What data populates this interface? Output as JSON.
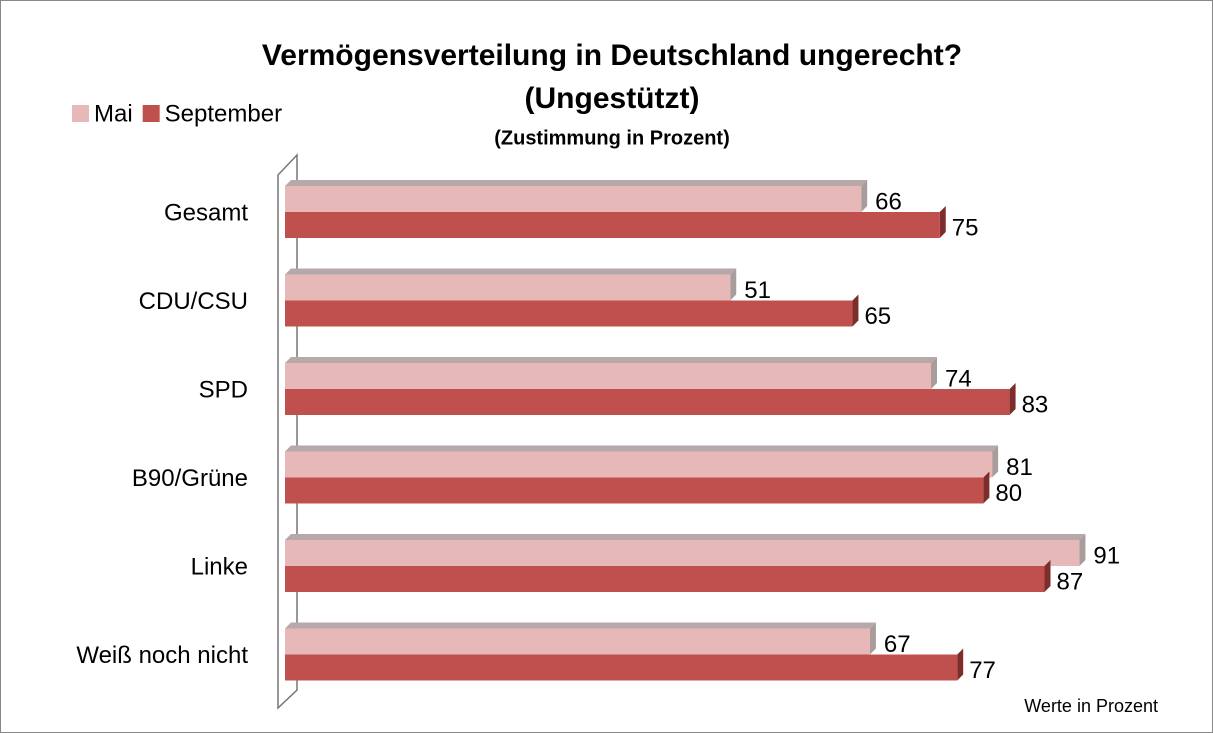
{
  "chart_data": {
    "type": "bar",
    "orientation": "horizontal",
    "title": "Vermögensverteilung in Deutschland ungerecht?",
    "subtitle": "(Ungestützt)",
    "subtitle2": "(Zustimmung in Prozent)",
    "note": "Werte in Prozent",
    "categories": [
      "Gesamt",
      "CDU/CSU",
      "SPD",
      "B90/Grüne",
      "Linke",
      "Weiß noch nicht"
    ],
    "series": [
      {
        "name": "Mai",
        "color": "#e6b9b8",
        "values": [
          66,
          51,
          74,
          81,
          91,
          67
        ]
      },
      {
        "name": "September",
        "color": "#c0504d",
        "values": [
          75,
          65,
          83,
          80,
          87,
          77
        ]
      }
    ],
    "xlim": [
      0,
      100
    ],
    "legend": "top-left"
  }
}
